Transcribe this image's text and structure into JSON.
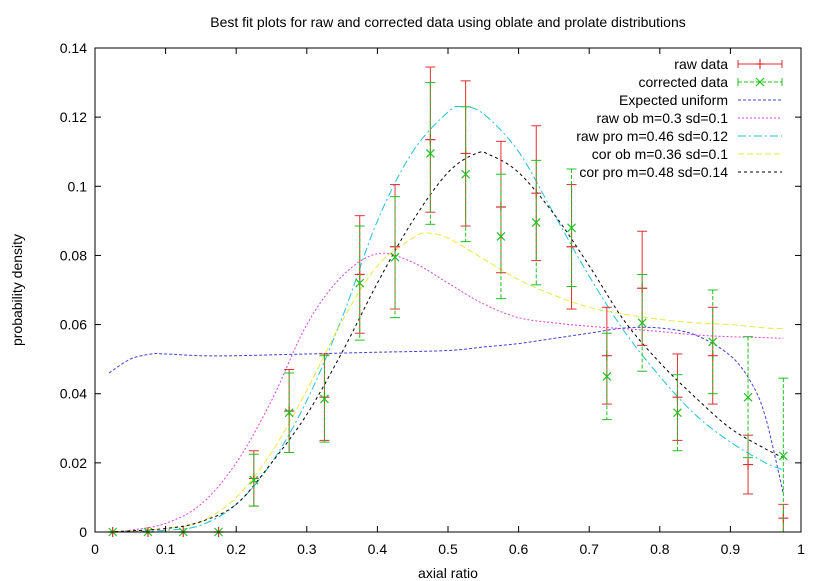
{
  "chart_data": {
    "type": "line",
    "title": "Best fit plots for raw and corrected data using oblate and prolate distributions",
    "xlabel": "axial ratio",
    "ylabel": "probability density",
    "xlim": [
      0,
      1
    ],
    "ylim": [
      0,
      0.14
    ],
    "x_ticks": [
      "0",
      "0.1",
      "0.2",
      "0.3",
      "0.4",
      "0.5",
      "0.6",
      "0.7",
      "0.8",
      "0.9",
      "1"
    ],
    "y_ticks": [
      "0",
      "0.02",
      "0.04",
      "0.06",
      "0.08",
      "0.1",
      "0.12",
      "0.14"
    ],
    "grid": false,
    "legend_position": "top-right",
    "series": [
      {
        "name": "raw data",
        "kind": "errorbar",
        "color": "#e03030",
        "x": [
          0.025,
          0.075,
          0.125,
          0.175,
          0.225,
          0.275,
          0.325,
          0.375,
          0.425,
          0.475,
          0.525,
          0.575,
          0.625,
          0.675,
          0.725,
          0.775,
          0.825,
          0.875,
          0.925,
          0.975
        ],
        "y": [
          0,
          0,
          0,
          0,
          0.0155,
          0.035,
          0.039,
          0.0745,
          0.0825,
          0.1135,
          0.1095,
          0.094,
          0.098,
          0.0825,
          0.051,
          0.0705,
          0.039,
          0.051,
          0.0195,
          0.004
        ],
        "err": [
          0,
          0,
          0,
          0,
          0.008,
          0.012,
          0.0125,
          0.017,
          0.018,
          0.021,
          0.021,
          0.019,
          0.0195,
          0.018,
          0.014,
          0.0165,
          0.0125,
          0.014,
          0.0085,
          0.004
        ]
      },
      {
        "name": "corrected data",
        "kind": "errorbar",
        "color": "#20c020",
        "x": [
          0.025,
          0.075,
          0.125,
          0.175,
          0.225,
          0.275,
          0.325,
          0.375,
          0.425,
          0.475,
          0.525,
          0.575,
          0.625,
          0.675,
          0.725,
          0.775,
          0.825,
          0.875,
          0.925,
          0.975
        ],
        "y": [
          0,
          0,
          0,
          0,
          0.015,
          0.0345,
          0.0385,
          0.072,
          0.0795,
          0.1095,
          0.1035,
          0.0855,
          0.0895,
          0.088,
          0.045,
          0.0605,
          0.0345,
          0.055,
          0.039,
          0.022
        ],
        "err": [
          0,
          0,
          0,
          0,
          0.0075,
          0.0115,
          0.0125,
          0.0165,
          0.0175,
          0.0205,
          0.0195,
          0.018,
          0.018,
          0.017,
          0.0125,
          0.014,
          0.011,
          0.015,
          0.0175,
          0.0225
        ]
      },
      {
        "name": "Expected uniform",
        "kind": "line",
        "color": "#4040e0",
        "dash": "3,2",
        "x": [
          0.02,
          0.05,
          0.08,
          0.1,
          0.15,
          0.2,
          0.3,
          0.4,
          0.5,
          0.55,
          0.6,
          0.65,
          0.7,
          0.75,
          0.8,
          0.85,
          0.9,
          0.93,
          0.95,
          0.975
        ],
        "y": [
          0.046,
          0.05,
          0.0515,
          0.0515,
          0.051,
          0.051,
          0.0515,
          0.052,
          0.0525,
          0.0535,
          0.0545,
          0.056,
          0.0575,
          0.059,
          0.059,
          0.057,
          0.051,
          0.043,
          0.033,
          0.011
        ]
      },
      {
        "name": "raw ob m=0.3 sd=0.1",
        "kind": "line",
        "color": "#e040e0",
        "dash": "2,2",
        "x": [
          0.02,
          0.05,
          0.1,
          0.15,
          0.2,
          0.25,
          0.3,
          0.35,
          0.4,
          0.45,
          0.5,
          0.55,
          0.6,
          0.65,
          0.7,
          0.75,
          0.8,
          0.85,
          0.9,
          0.95,
          0.975
        ],
        "y": [
          0,
          0.0005,
          0.0025,
          0.008,
          0.02,
          0.038,
          0.06,
          0.074,
          0.0805,
          0.078,
          0.072,
          0.066,
          0.062,
          0.0605,
          0.0595,
          0.0588,
          0.058,
          0.057,
          0.0565,
          0.0562,
          0.056
        ]
      },
      {
        "name": "raw pro m=0.46 sd=0.12",
        "kind": "line",
        "color": "#20c0e0",
        "dash": "8,3,2,3",
        "x": [
          0.02,
          0.1,
          0.15,
          0.2,
          0.25,
          0.3,
          0.35,
          0.4,
          0.45,
          0.5,
          0.52,
          0.55,
          0.6,
          0.65,
          0.7,
          0.75,
          0.8,
          0.85,
          0.9,
          0.95,
          0.975
        ],
        "y": [
          0,
          0.0005,
          0.002,
          0.008,
          0.02,
          0.038,
          0.062,
          0.09,
          0.11,
          0.1215,
          0.123,
          0.121,
          0.11,
          0.092,
          0.074,
          0.058,
          0.045,
          0.034,
          0.026,
          0.02,
          0.018
        ]
      },
      {
        "name": "cor ob m=0.36 sd=0.1",
        "kind": "line",
        "color": "#e8e840",
        "dash": "6,3",
        "x": [
          0.02,
          0.1,
          0.15,
          0.2,
          0.25,
          0.3,
          0.35,
          0.4,
          0.45,
          0.47,
          0.5,
          0.55,
          0.6,
          0.65,
          0.7,
          0.75,
          0.8,
          0.85,
          0.9,
          0.95,
          0.975
        ],
        "y": [
          0,
          0.001,
          0.003,
          0.01,
          0.023,
          0.041,
          0.061,
          0.077,
          0.085,
          0.0865,
          0.085,
          0.079,
          0.073,
          0.0685,
          0.065,
          0.063,
          0.0615,
          0.0605,
          0.06,
          0.059,
          0.0588
        ]
      },
      {
        "name": "cor pro m=0.48 sd=0.14",
        "kind": "line",
        "color": "#000000",
        "dash": "3,3",
        "x": [
          0.02,
          0.1,
          0.15,
          0.2,
          0.25,
          0.3,
          0.35,
          0.4,
          0.45,
          0.5,
          0.54,
          0.56,
          0.6,
          0.65,
          0.7,
          0.75,
          0.8,
          0.85,
          0.9,
          0.95,
          0.975
        ],
        "y": [
          0,
          0.001,
          0.003,
          0.008,
          0.02,
          0.034,
          0.052,
          0.072,
          0.09,
          0.104,
          0.1095,
          0.109,
          0.104,
          0.092,
          0.077,
          0.061,
          0.049,
          0.039,
          0.03,
          0.024,
          0.0215
        ]
      }
    ]
  }
}
